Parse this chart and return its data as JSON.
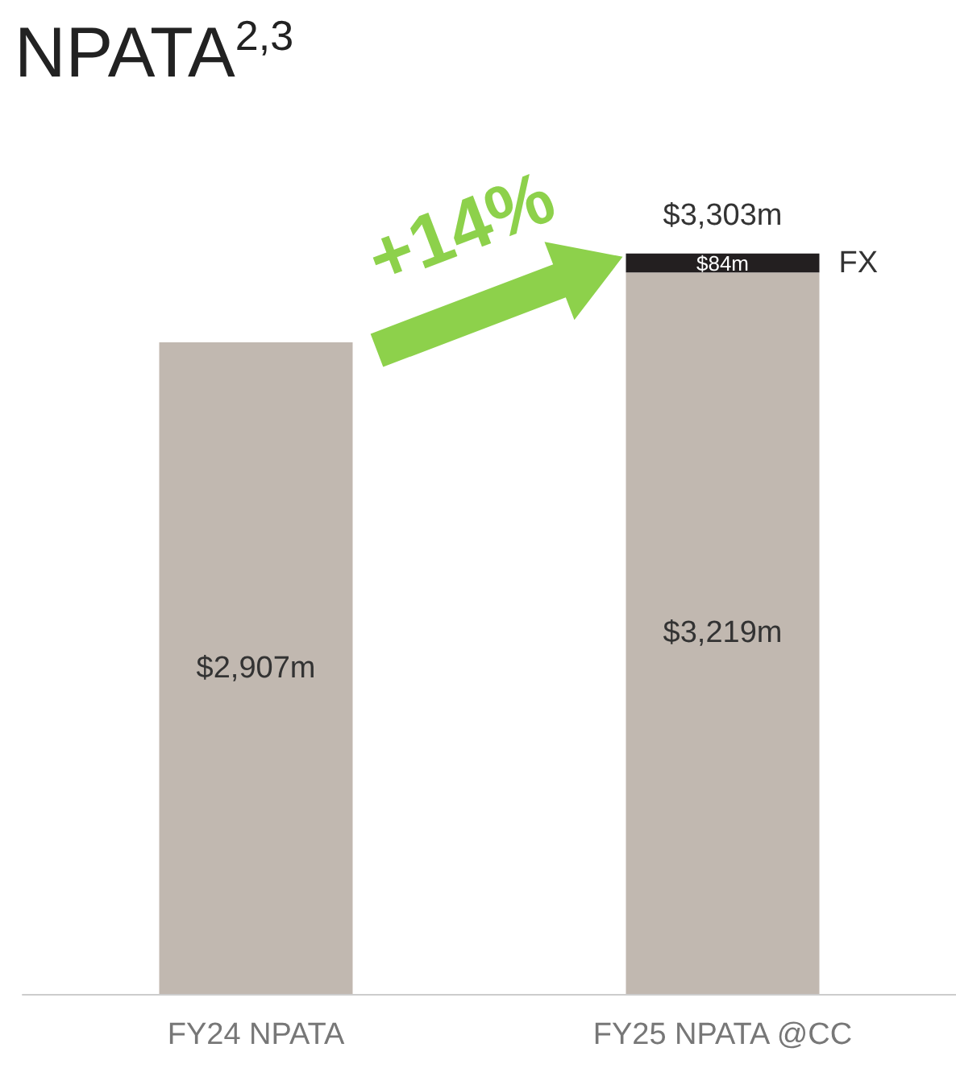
{
  "chart_data": {
    "type": "bar",
    "title": "NPATA$^{2,3}$",
    "categories": [
      "FY24 NPATA",
      "FY25 NPATA @CC"
    ],
    "stacked": true,
    "series": [
      {
        "color": "#c1b8b0",
        "values": [
          2907,
          3219
        ],
        "value_labels": [
          "$2,907m",
          "$3,219m"
        ]
      },
      {
        "name": "FX",
        "color": "#231f20",
        "values": [
          null,
          84
        ],
        "value_labels": [
          null,
          "$84m"
        ]
      }
    ],
    "totals": [
      null,
      "$3,303m"
    ],
    "annotations": [
      "+14%"
    ],
    "legend": false
  }
}
